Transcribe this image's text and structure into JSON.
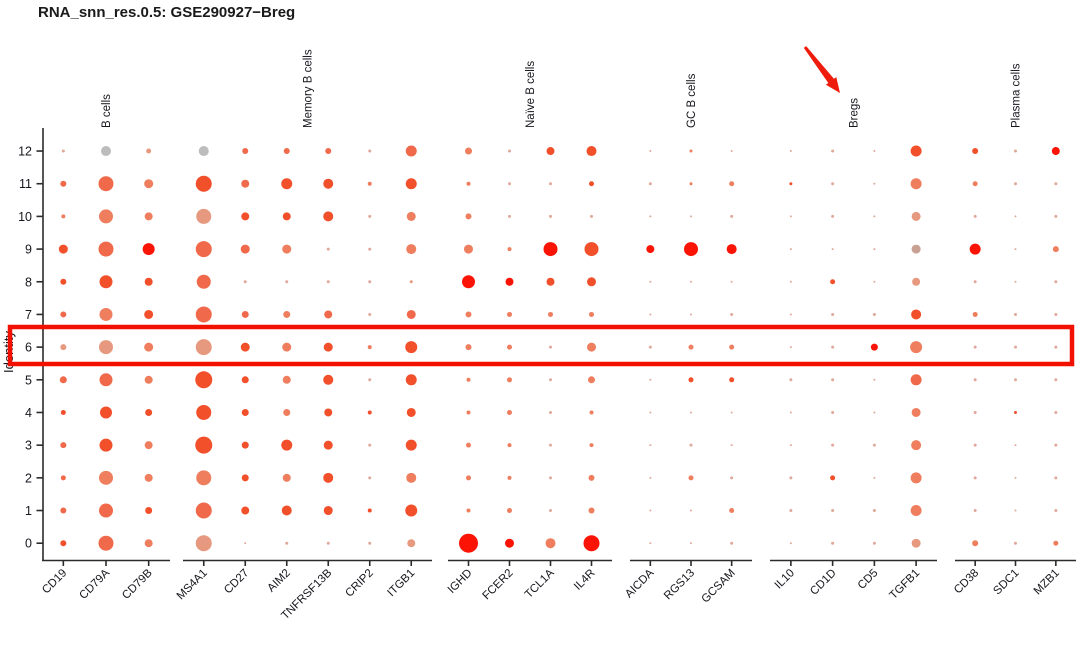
{
  "title": "RNA_snn_res.0.5: GSE290927−Breg",
  "axis": {
    "ylabel": "Identity"
  },
  "annotations": {
    "highlight_box": {
      "row": 6,
      "color": "#f21000"
    },
    "arrow": {
      "points_to": "Bregs",
      "color": "#ee1c0c"
    }
  },
  "chart_data": {
    "type": "scatter",
    "variant": "split-dotplot",
    "title": "RNA_snn_res.0.5: GSE290927−Breg",
    "xlabel": "",
    "ylabel": "Identity",
    "legend": "none",
    "highlighted_cluster": 6,
    "cluster_order": [
      12,
      11,
      10,
      9,
      8,
      7,
      6,
      5,
      4,
      3,
      2,
      1,
      0
    ],
    "groups": [
      {
        "label": "B cells",
        "genes": [
          "CD19",
          "CD79A",
          "CD79B"
        ]
      },
      {
        "label": "Memory B cells",
        "genes": [
          "MS4A1",
          "CD27",
          "AIM2",
          "TNFRSF13B",
          "CRIP2",
          "ITGB1"
        ]
      },
      {
        "label": "Naïve B cells",
        "genes": [
          "IGHD",
          "FCER2",
          "TCL1A",
          "IL4R"
        ]
      },
      {
        "label": "GC B cells",
        "genes": [
          "AICDA",
          "RGS13",
          "GCSAM"
        ]
      },
      {
        "label": "Bregs",
        "genes": [
          "IL10",
          "CD1D",
          "CD5",
          "TGFB1"
        ]
      },
      {
        "label": "Plasma cells",
        "genes": [
          "CD38",
          "SDC1",
          "MZB1"
        ]
      }
    ],
    "palette": {
      "G": "#bdbdbd",
      "F": "#dfa89a",
      "LS": "#e6997f",
      "S": "#ee7e5e",
      "SR": "#f0694a",
      "R": "#f24f2b",
      "BR": "#fb1405",
      "GS": "#c8a193"
    },
    "size_note": "each cell is [dot radius in px, color key]; rows follow cluster_order 12..0",
    "cells": {
      "CD19": [
        [
          1.5,
          "F"
        ],
        [
          3,
          "SR"
        ],
        [
          2,
          "S"
        ],
        [
          4.5,
          "R"
        ],
        [
          3,
          "R"
        ],
        [
          3,
          "SR"
        ],
        [
          3,
          "LS"
        ],
        [
          3.5,
          "SR"
        ],
        [
          2.5,
          "R"
        ],
        [
          3,
          "SR"
        ],
        [
          2.5,
          "SR"
        ],
        [
          3,
          "SR"
        ],
        [
          3,
          "R"
        ]
      ],
      "CD79A": [
        [
          5,
          "G"
        ],
        [
          7.5,
          "SR"
        ],
        [
          7,
          "S"
        ],
        [
          7.5,
          "SR"
        ],
        [
          6.5,
          "R"
        ],
        [
          6.5,
          "S"
        ],
        [
          7,
          "LS"
        ],
        [
          6.5,
          "SR"
        ],
        [
          6,
          "R"
        ],
        [
          6.5,
          "R"
        ],
        [
          7,
          "S"
        ],
        [
          7,
          "SR"
        ],
        [
          7.5,
          "SR"
        ]
      ],
      "CD79B": [
        [
          2.5,
          "LS"
        ],
        [
          4.5,
          "S"
        ],
        [
          4,
          "S"
        ],
        [
          6,
          "BR"
        ],
        [
          4,
          "R"
        ],
        [
          4.5,
          "R"
        ],
        [
          4.5,
          "S"
        ],
        [
          4,
          "S"
        ],
        [
          3.5,
          "R"
        ],
        [
          4,
          "S"
        ],
        [
          4,
          "S"
        ],
        [
          3.5,
          "R"
        ],
        [
          4,
          "S"
        ]
      ],
      "MS4A1": [
        [
          5,
          "G"
        ],
        [
          8,
          "R"
        ],
        [
          7.5,
          "LS"
        ],
        [
          8,
          "SR"
        ],
        [
          7,
          "SR"
        ],
        [
          8,
          "SR"
        ],
        [
          8,
          "LS"
        ],
        [
          8.5,
          "R"
        ],
        [
          7.5,
          "R"
        ],
        [
          8.5,
          "R"
        ],
        [
          7.5,
          "S"
        ],
        [
          8,
          "SR"
        ],
        [
          8,
          "LS"
        ]
      ],
      "CD27": [
        [
          3,
          "SR"
        ],
        [
          4,
          "SR"
        ],
        [
          4,
          "R"
        ],
        [
          4.5,
          "SR"
        ],
        [
          1.5,
          "F"
        ],
        [
          3.5,
          "SR"
        ],
        [
          4.5,
          "R"
        ],
        [
          3.5,
          "R"
        ],
        [
          3.5,
          "R"
        ],
        [
          3.5,
          "R"
        ],
        [
          3.5,
          "R"
        ],
        [
          4,
          "R"
        ],
        [
          1,
          "F"
        ]
      ],
      "AIM2": [
        [
          3,
          "SR"
        ],
        [
          5.5,
          "R"
        ],
        [
          4,
          "R"
        ],
        [
          4.5,
          "S"
        ],
        [
          1.5,
          "F"
        ],
        [
          3.5,
          "S"
        ],
        [
          4.5,
          "S"
        ],
        [
          4,
          "S"
        ],
        [
          3.5,
          "S"
        ],
        [
          5.5,
          "R"
        ],
        [
          4,
          "S"
        ],
        [
          5,
          "R"
        ],
        [
          1.5,
          "F"
        ]
      ],
      "TNFRSF13B": [
        [
          3,
          "SR"
        ],
        [
          5,
          "R"
        ],
        [
          5,
          "R"
        ],
        [
          1.5,
          "F"
        ],
        [
          1.5,
          "F"
        ],
        [
          4,
          "SR"
        ],
        [
          4.5,
          "R"
        ],
        [
          5,
          "R"
        ],
        [
          4,
          "R"
        ],
        [
          4.5,
          "R"
        ],
        [
          5,
          "R"
        ],
        [
          4.5,
          "R"
        ],
        [
          1.5,
          "F"
        ]
      ],
      "CRIP2": [
        [
          1.5,
          "F"
        ],
        [
          2,
          "S"
        ],
        [
          1.5,
          "F"
        ],
        [
          1.5,
          "F"
        ],
        [
          1.5,
          "F"
        ],
        [
          1.5,
          "F"
        ],
        [
          2,
          "S"
        ],
        [
          1.5,
          "F"
        ],
        [
          2,
          "R"
        ],
        [
          1.5,
          "F"
        ],
        [
          1.5,
          "F"
        ],
        [
          2,
          "R"
        ],
        [
          1.5,
          "F"
        ]
      ],
      "ITGB1": [
        [
          5.5,
          "SR"
        ],
        [
          5.5,
          "R"
        ],
        [
          4.5,
          "S"
        ],
        [
          5,
          "S"
        ],
        [
          1.5,
          "LS"
        ],
        [
          4.5,
          "SR"
        ],
        [
          6,
          "R"
        ],
        [
          5.5,
          "R"
        ],
        [
          4.5,
          "R"
        ],
        [
          5.5,
          "R"
        ],
        [
          5,
          "S"
        ],
        [
          6,
          "R"
        ],
        [
          4,
          "LS"
        ]
      ],
      "IGHD": [
        [
          3.5,
          "S"
        ],
        [
          2,
          "S"
        ],
        [
          3,
          "S"
        ],
        [
          4.5,
          "S"
        ],
        [
          6.5,
          "BR"
        ],
        [
          3,
          "S"
        ],
        [
          3,
          "S"
        ],
        [
          2,
          "S"
        ],
        [
          2,
          "S"
        ],
        [
          2.5,
          "S"
        ],
        [
          2.5,
          "S"
        ],
        [
          2,
          "S"
        ],
        [
          9.5,
          "BR"
        ]
      ],
      "FCER2": [
        [
          1.5,
          "F"
        ],
        [
          1.5,
          "F"
        ],
        [
          1.5,
          "F"
        ],
        [
          2,
          "S"
        ],
        [
          4,
          "BR"
        ],
        [
          2.5,
          "S"
        ],
        [
          2.5,
          "S"
        ],
        [
          2.5,
          "S"
        ],
        [
          2.5,
          "S"
        ],
        [
          2,
          "S"
        ],
        [
          2,
          "S"
        ],
        [
          2.5,
          "S"
        ],
        [
          4.5,
          "BR"
        ]
      ],
      "TCL1A": [
        [
          4,
          "R"
        ],
        [
          1.5,
          "F"
        ],
        [
          1.5,
          "F"
        ],
        [
          7,
          "BR"
        ],
        [
          4,
          "R"
        ],
        [
          2.5,
          "S"
        ],
        [
          1.5,
          "F"
        ],
        [
          1.5,
          "F"
        ],
        [
          1.5,
          "F"
        ],
        [
          1.5,
          "F"
        ],
        [
          1.5,
          "F"
        ],
        [
          1.5,
          "F"
        ],
        [
          5,
          "S"
        ]
      ],
      "IL4R": [
        [
          5,
          "R"
        ],
        [
          2.5,
          "R"
        ],
        [
          1.5,
          "F"
        ],
        [
          7,
          "R"
        ],
        [
          4.5,
          "R"
        ],
        [
          2.5,
          "S"
        ],
        [
          4.5,
          "S"
        ],
        [
          3.5,
          "S"
        ],
        [
          2,
          "S"
        ],
        [
          2,
          "S"
        ],
        [
          3,
          "S"
        ],
        [
          3,
          "S"
        ],
        [
          8,
          "BR"
        ]
      ],
      "AICDA": [
        [
          1,
          "F"
        ],
        [
          1.5,
          "F"
        ],
        [
          1,
          "F"
        ],
        [
          4,
          "BR"
        ],
        [
          1,
          "F"
        ],
        [
          1,
          "F"
        ],
        [
          1.5,
          "F"
        ],
        [
          1,
          "F"
        ],
        [
          1,
          "F"
        ],
        [
          1,
          "F"
        ],
        [
          1,
          "F"
        ],
        [
          1,
          "F"
        ],
        [
          1,
          "F"
        ]
      ],
      "RGS13": [
        [
          1.5,
          "S"
        ],
        [
          1.5,
          "S"
        ],
        [
          1,
          "F"
        ],
        [
          7,
          "BR"
        ],
        [
          1,
          "F"
        ],
        [
          1,
          "F"
        ],
        [
          2.5,
          "S"
        ],
        [
          2.5,
          "R"
        ],
        [
          1,
          "F"
        ],
        [
          1.5,
          "F"
        ],
        [
          2.5,
          "S"
        ],
        [
          1,
          "F"
        ],
        [
          1,
          "F"
        ]
      ],
      "GCSAM": [
        [
          1,
          "F"
        ],
        [
          2.5,
          "S"
        ],
        [
          1.5,
          "F"
        ],
        [
          5,
          "BR"
        ],
        [
          1,
          "F"
        ],
        [
          1.5,
          "F"
        ],
        [
          2.5,
          "S"
        ],
        [
          2.5,
          "R"
        ],
        [
          1,
          "F"
        ],
        [
          1,
          "F"
        ],
        [
          1.5,
          "F"
        ],
        [
          2.5,
          "S"
        ],
        [
          1.5,
          "F"
        ]
      ],
      "IL10": [
        [
          1,
          "F"
        ],
        [
          1.5,
          "R"
        ],
        [
          1,
          "F"
        ],
        [
          1,
          "F"
        ],
        [
          1,
          "F"
        ],
        [
          1,
          "F"
        ],
        [
          1,
          "F"
        ],
        [
          1.5,
          "F"
        ],
        [
          1,
          "F"
        ],
        [
          1,
          "F"
        ],
        [
          1.5,
          "F"
        ],
        [
          1.5,
          "F"
        ],
        [
          1,
          "F"
        ]
      ],
      "CD1D": [
        [
          1.5,
          "F"
        ],
        [
          1.5,
          "F"
        ],
        [
          1.5,
          "F"
        ],
        [
          1,
          "F"
        ],
        [
          2.5,
          "R"
        ],
        [
          1.5,
          "F"
        ],
        [
          1.5,
          "F"
        ],
        [
          1.5,
          "F"
        ],
        [
          1.5,
          "F"
        ],
        [
          1.5,
          "F"
        ],
        [
          2.5,
          "R"
        ],
        [
          1.5,
          "F"
        ],
        [
          1.5,
          "F"
        ]
      ],
      "CD5": [
        [
          1,
          "F"
        ],
        [
          1,
          "F"
        ],
        [
          1,
          "F"
        ],
        [
          1,
          "F"
        ],
        [
          1,
          "F"
        ],
        [
          1.5,
          "F"
        ],
        [
          3.5,
          "BR"
        ],
        [
          1,
          "F"
        ],
        [
          1,
          "F"
        ],
        [
          1.5,
          "F"
        ],
        [
          1,
          "F"
        ],
        [
          1.5,
          "F"
        ],
        [
          1.5,
          "F"
        ]
      ],
      "TGFB1": [
        [
          5.5,
          "R"
        ],
        [
          5.5,
          "S"
        ],
        [
          4.5,
          "LS"
        ],
        [
          4.5,
          "GS"
        ],
        [
          4,
          "LS"
        ],
        [
          5,
          "R"
        ],
        [
          6,
          "S"
        ],
        [
          5.5,
          "SR"
        ],
        [
          4.5,
          "S"
        ],
        [
          5,
          "S"
        ],
        [
          5.5,
          "S"
        ],
        [
          5.5,
          "S"
        ],
        [
          4.5,
          "LS"
        ]
      ],
      "CD38": [
        [
          3,
          "R"
        ],
        [
          2.5,
          "S"
        ],
        [
          1.5,
          "F"
        ],
        [
          5.5,
          "BR"
        ],
        [
          1.5,
          "F"
        ],
        [
          2.5,
          "S"
        ],
        [
          1.5,
          "F"
        ],
        [
          1.5,
          "F"
        ],
        [
          1.5,
          "F"
        ],
        [
          1.5,
          "F"
        ],
        [
          1.5,
          "F"
        ],
        [
          1.5,
          "F"
        ],
        [
          3,
          "S"
        ]
      ],
      "SDC1": [
        [
          1.5,
          "F"
        ],
        [
          1.5,
          "F"
        ],
        [
          1,
          "F"
        ],
        [
          1,
          "F"
        ],
        [
          1,
          "F"
        ],
        [
          1.5,
          "F"
        ],
        [
          1.5,
          "F"
        ],
        [
          1.5,
          "F"
        ],
        [
          1.5,
          "R"
        ],
        [
          1,
          "F"
        ],
        [
          1,
          "F"
        ],
        [
          1,
          "F"
        ],
        [
          1.5,
          "F"
        ]
      ],
      "MZB1": [
        [
          4,
          "BR"
        ],
        [
          1.5,
          "F"
        ],
        [
          1.5,
          "F"
        ],
        [
          3,
          "S"
        ],
        [
          1.5,
          "F"
        ],
        [
          1.5,
          "F"
        ],
        [
          1.5,
          "F"
        ],
        [
          1.5,
          "F"
        ],
        [
          1.5,
          "F"
        ],
        [
          1.5,
          "F"
        ],
        [
          1.5,
          "F"
        ],
        [
          1.5,
          "F"
        ],
        [
          2.5,
          "S"
        ]
      ]
    }
  }
}
